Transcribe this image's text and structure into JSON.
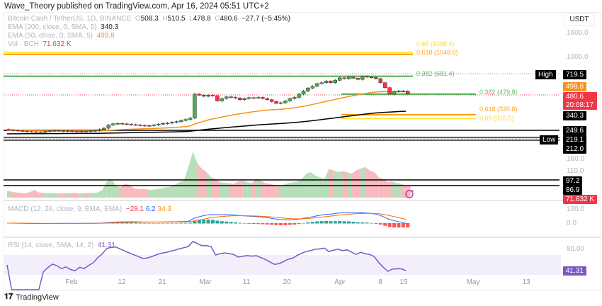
{
  "publisher_line": "Wave_Theory published on TradingView.com, Apr 16, 2024 05:51 UTC+2",
  "legend": {
    "symbol": "Bitcoin Cash / TetherUS, 1D, BINANCE",
    "o_label": "O",
    "o": "508.3",
    "h_label": "H",
    "h": "510.5",
    "l_label": "L",
    "l": "478.8",
    "c_label": "C",
    "c": "480.6",
    "change": "−27.7 (−5.45%)",
    "ema200_label": "EMA (200, close, 0, SMA, 5)",
    "ema200": "340.3",
    "ema50_label": "EMA (50, close, 0, SMA, 5)",
    "ema50": "499.8",
    "vol_label": "Vol · BCH",
    "vol": "71.632 K",
    "macd_label": "MACD (12, 26, close, 9, EMA, EMA)",
    "macd_hist": "−28.1",
    "macd": "6.2",
    "macd_signal": "34.3",
    "rsi_label": "RSI (14, close, SMA, 14, 2)",
    "rsi": "41.31"
  },
  "currency": "USDT",
  "axis_labels": {
    "p1600": "1600.0",
    "p1000": "1000.0",
    "p160": "160.0",
    "p110": "110.0",
    "m100": "100.0",
    "m0": "0.0",
    "r80": "80.00"
  },
  "price_tags": {
    "high_label": "High",
    "high": "719.5",
    "ema50": "499.8",
    "last": "480.6",
    "countdown": "20:08:17",
    "ema200": "340.3",
    "l1": "249.6",
    "low_label": "Low",
    "low": "219.1",
    "l2": "212.0",
    "l3": "97.2",
    "l4": "86.9",
    "vol": "71.632 K",
    "rsi": "41.31"
  },
  "fib_labels": {
    "f65_top": "0.65 (1088.4)",
    "f618_top": "0.618 (1048.6)",
    "f382_top": "0.382 (681.4)",
    "f382_bot": "0.382 (479.8)",
    "f618_bot": "0.618 (320.8)",
    "f65_bot": "0.65 (310.5)"
  },
  "time_labels": [
    "Feb",
    "12",
    "21",
    "Mar",
    "11",
    "20",
    "Apr",
    "8",
    "15",
    "May",
    "13"
  ],
  "brand": "TradingView",
  "colors": {
    "up": "#26a69a",
    "down": "#f23645",
    "ema50": "#f7931a",
    "ema200": "#000000",
    "macd": "#2962ff",
    "signal": "#ff6d00",
    "rsi": "#7e57c2",
    "fib_green": "#4caf50",
    "fib_orange": "#ff9800",
    "fib_yellow": "#ffeb3b"
  },
  "chart_data": {
    "type": "candlestick",
    "title": "Bitcoin Cash / TetherUS, 1D, BINANCE",
    "start_date": "2024-01-19",
    "scale": "log",
    "closes": [
      238,
      236,
      234,
      232,
      230,
      229,
      228,
      226,
      231,
      233,
      235,
      234,
      232,
      233,
      231,
      230,
      232,
      231,
      233,
      235,
      240,
      246,
      262,
      268,
      270,
      268,
      266,
      264,
      262,
      260,
      258,
      259,
      262,
      266,
      270,
      272,
      276,
      280,
      286,
      292,
      300,
      480,
      470,
      460,
      470,
      465,
      420,
      440,
      455,
      450,
      445,
      430,
      440,
      448,
      445,
      450,
      440,
      430,
      415,
      400,
      405,
      420,
      440,
      450,
      480,
      510,
      540,
      560,
      590,
      600,
      620,
      600,
      630,
      660,
      650,
      670,
      655,
      640,
      680,
      670,
      665,
      650,
      600,
      545,
      480,
      505,
      510,
      508,
      480.6
    ],
    "volume_k": [
      40,
      35,
      30,
      28,
      25,
      32,
      45,
      30,
      28,
      27,
      26,
      25,
      25,
      26,
      27,
      28,
      25,
      26,
      27,
      28,
      30,
      45,
      95,
      110,
      70,
      60,
      80,
      75,
      55,
      50,
      52,
      48,
      46,
      50,
      55,
      60,
      65,
      75,
      90,
      100,
      180,
      270,
      200,
      170,
      150,
      120,
      110,
      90,
      88,
      85,
      80,
      95,
      100,
      90,
      85,
      110,
      100,
      85,
      80,
      75,
      70,
      75,
      85,
      90,
      95,
      110,
      140,
      150,
      130,
      120,
      110,
      170,
      160,
      150,
      155,
      150,
      140,
      160,
      170,
      180,
      160,
      150,
      120,
      110,
      90,
      95,
      85,
      80,
      71.632
    ],
    "horizontal_levels": [
      1088.4,
      1048.6,
      681.4,
      479.8,
      320.8,
      310.5,
      249.6,
      219.1,
      212.0
    ],
    "rsi_range": [
      0,
      100
    ],
    "macd_zero": 0
  }
}
